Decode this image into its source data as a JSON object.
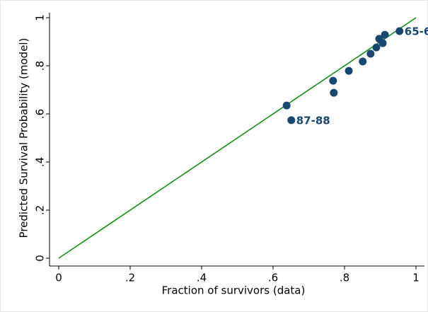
{
  "chart_data": {
    "type": "scatter",
    "xlabel": "Fraction of survivors (data)",
    "ylabel": "Predicted Survival Probability (model)",
    "x": [
      0.638,
      0.651,
      0.768,
      0.77,
      0.812,
      0.851,
      0.873,
      0.889,
      0.897,
      0.907,
      0.913,
      0.954
    ],
    "values": [
      0.635,
      0.574,
      0.738,
      0.688,
      0.779,
      0.818,
      0.85,
      0.876,
      0.912,
      0.894,
      0.929,
      0.944
    ],
    "point_labels": [
      null,
      "87-88",
      null,
      null,
      null,
      null,
      null,
      null,
      null,
      null,
      null,
      "65-6"
    ],
    "color": "#1a476f",
    "reference_line": {
      "from": [
        0,
        0
      ],
      "to": [
        1,
        1
      ],
      "color": "#1a8c1a"
    },
    "xlim": [
      0,
      1
    ],
    "ylim": [
      0,
      1
    ],
    "xticks": [
      0,
      {
        "value": 0.2,
        "label": ".2"
      },
      {
        "value": 0.4,
        "label": ".4"
      },
      {
        "value": 0.6,
        "label": ".6"
      },
      {
        "value": 0.8,
        "label": ".8"
      },
      1
    ],
    "yticks": [
      0,
      {
        "value": 0.2,
        "label": ".2"
      },
      {
        "value": 0.4,
        "label": ".4"
      },
      {
        "value": 0.6,
        "label": ".6"
      },
      {
        "value": 0.8,
        "label": ".8"
      },
      1
    ]
  }
}
